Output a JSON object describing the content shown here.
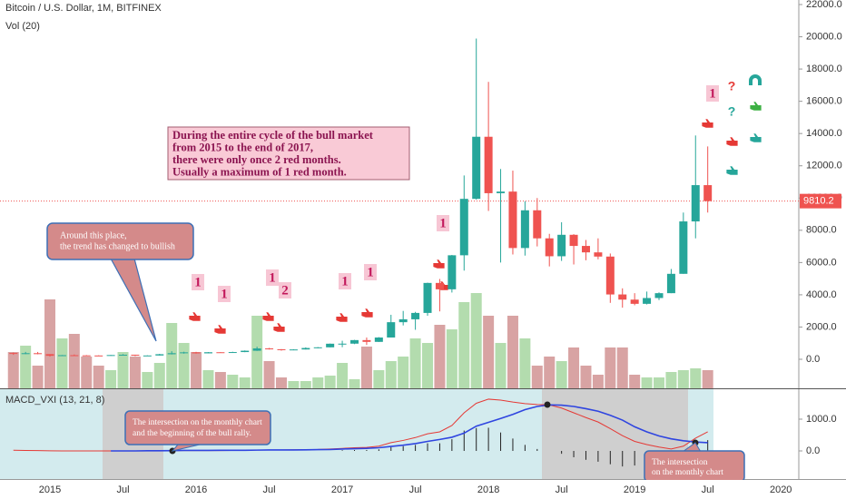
{
  "chart_data": [
    {
      "type": "candlestick",
      "title": "Bitcoin / U.S. Dollar, 1M, BITFINEX",
      "subtitle": "Vol (20)",
      "x": [
        "2014-10",
        "2014-11",
        "2014-12",
        "2015-01",
        "2015-02",
        "2015-03",
        "2015-04",
        "2015-05",
        "2015-06",
        "2015-07",
        "2015-08",
        "2015-09",
        "2015-10",
        "2015-11",
        "2015-12",
        "2016-01",
        "2016-02",
        "2016-03",
        "2016-04",
        "2016-05",
        "2016-06",
        "2016-07",
        "2016-08",
        "2016-09",
        "2016-10",
        "2016-11",
        "2016-12",
        "2017-01",
        "2017-02",
        "2017-03",
        "2017-04",
        "2017-05",
        "2017-06",
        "2017-07",
        "2017-08",
        "2017-09",
        "2017-10",
        "2017-11",
        "2017-12",
        "2018-01",
        "2018-02",
        "2018-03",
        "2018-04",
        "2018-05",
        "2018-06",
        "2018-07",
        "2018-08",
        "2018-09",
        "2018-10",
        "2018-11",
        "2018-12",
        "2019-01",
        "2019-02",
        "2019-03",
        "2019-04",
        "2019-05",
        "2019-06",
        "2019-07"
      ],
      "open": [
        388,
        338,
        378,
        320,
        217,
        254,
        244,
        236,
        230,
        263,
        284,
        230,
        236,
        314,
        377,
        430,
        368,
        437,
        416,
        448,
        531,
        673,
        624,
        575,
        609,
        700,
        742,
        966,
        970,
        1190,
        1080,
        1350,
        2300,
        2480,
        2875,
        4735,
        4340,
        6450,
        9950,
        13800,
        10300,
        10400,
        6900,
        9240,
        7500,
        6390,
        7720,
        7030,
        6630,
        6370,
        4020,
        3700,
        3440,
        3800,
        4100,
        5300,
        8550,
        10800
      ],
      "high": [
        415,
        457,
        455,
        320,
        265,
        300,
        262,
        248,
        268,
        316,
        285,
        245,
        335,
        500,
        468,
        462,
        448,
        440,
        467,
        550,
        780,
        705,
        628,
        623,
        740,
        755,
        975,
        1150,
        1200,
        1350,
        1375,
        2760,
        3000,
        2940,
        4750,
        4980,
        6470,
        11400,
        19890,
        17200,
        11800,
        11700,
        9800,
        10000,
        7780,
        8500,
        7760,
        7400,
        7500,
        6560,
        4400,
        4100,
        4200,
        4150,
        5600,
        9100,
        13880,
        13200
      ],
      "low": [
        275,
        325,
        310,
        166,
        212,
        235,
        214,
        225,
        219,
        254,
        197,
        226,
        236,
        300,
        350,
        350,
        365,
        395,
        413,
        441,
        520,
        605,
        535,
        571,
        606,
        680,
        742,
        750,
        945,
        890,
        1076,
        1350,
        2100,
        1830,
        2700,
        2970,
        4140,
        5500,
        9900,
        9200,
        6000,
        6500,
        6430,
        7000,
        5760,
        6100,
        5880,
        6140,
        6200,
        3500,
        3200,
        3350,
        3400,
        3670,
        4100,
        5300,
        7500,
        9100
      ],
      "close": [
        338,
        378,
        320,
        217,
        254,
        244,
        236,
        230,
        263,
        284,
        230,
        236,
        314,
        377,
        430,
        368,
        437,
        416,
        448,
        531,
        673,
        624,
        575,
        609,
        700,
        742,
        966,
        970,
        1190,
        1080,
        1350,
        2300,
        2480,
        2875,
        4735,
        4340,
        6450,
        9950,
        13800,
        10300,
        10400,
        6900,
        9240,
        7500,
        6390,
        7720,
        7030,
        6630,
        6370,
        4020,
        3700,
        3440,
        3800,
        4100,
        5300,
        8550,
        10800,
        9810.2
      ],
      "volume": [
        40,
        47,
        25,
        98,
        55,
        60,
        35,
        25,
        20,
        40,
        35,
        18,
        28,
        72,
        50,
        40,
        20,
        18,
        15,
        12,
        80,
        30,
        12,
        8,
        8,
        12,
        14,
        28,
        10,
        46,
        20,
        30,
        35,
        55,
        50,
        70,
        65,
        95,
        105,
        80,
        50,
        80,
        55,
        25,
        35,
        30,
        45,
        25,
        15,
        45,
        45,
        15,
        12,
        12,
        18,
        20,
        22,
        20
      ],
      "up_color": "#26a69a",
      "down_color": "#ef5350",
      "volume_up_color": "#b3dcae",
      "volume_down_color": "#d8a3a3",
      "ylim": [
        -1800,
        22281
      ],
      "yticks": [
        {
          "value": 0,
          "label": "0.0"
        },
        {
          "value": 2000,
          "label": "2000.0"
        },
        {
          "value": 4000,
          "label": "4000.0"
        },
        {
          "value": 6000,
          "label": "6000.0"
        },
        {
          "value": 8000,
          "label": "8000.0"
        },
        {
          "value": 10000,
          "label": "10000.0"
        },
        {
          "value": 12000,
          "label": "12000.0"
        },
        {
          "value": 14000,
          "label": "14000.0"
        },
        {
          "value": 16000,
          "label": "16000.0"
        },
        {
          "value": 18000,
          "label": "18000.0"
        },
        {
          "value": 20000,
          "label": "20000.0"
        },
        {
          "value": 22000,
          "label": "22000.0"
        }
      ],
      "xticks": [
        {
          "value": "2015-01",
          "label": "2015"
        },
        {
          "value": "2015-07",
          "label": "Jul"
        },
        {
          "value": "2016-01",
          "label": "2016"
        },
        {
          "value": "2016-07",
          "label": "Jul"
        },
        {
          "value": "2017-01",
          "label": "2017"
        },
        {
          "value": "2017-07",
          "label": "Jul"
        },
        {
          "value": "2018-01",
          "label": "2018"
        },
        {
          "value": "2018-07",
          "label": "Jul"
        },
        {
          "value": "2019-01",
          "label": "2019"
        },
        {
          "value": "2019-07",
          "label": "Jul"
        },
        {
          "value": "2020-01",
          "label": "2020"
        }
      ],
      "annotations": [
        {
          "lines": [
            "During the entire cycle of the bull market",
            "from 2015 to the end of 2017,",
            "there were only once 2 red months.",
            "Usually a maximum of 1 red month."
          ]
        },
        {
          "lines": [
            "Around this place,",
            "the trend has changed to bullish"
          ]
        }
      ],
      "count_marks": [
        1,
        1,
        1,
        2,
        1,
        1,
        1,
        1
      ],
      "question_marks": [
        "?",
        "?"
      ]
    },
    {
      "type": "macd",
      "title": "MACD_VXI (13, 21, 8)",
      "lines": [
        {
          "color": "#e53935",
          "values": [
            20,
            15,
            10,
            5,
            0,
            0,
            0,
            0,
            0,
            0,
            0,
            0,
            5,
            10,
            10,
            10,
            10,
            10,
            15,
            20,
            30,
            30,
            30,
            35,
            40,
            45,
            60,
            80,
            100,
            110,
            150,
            260,
            330,
            420,
            540,
            600,
            800,
            1200,
            1500,
            1630,
            1600,
            1540,
            1490,
            1460,
            1450,
            1350,
            1200,
            1050,
            910,
            700,
            480,
            300,
            200,
            120,
            60,
            150,
            400,
            600
          ]
        },
        {
          "color": "#2f45e0",
          "values": [
            null,
            null,
            null,
            null,
            null,
            null,
            null,
            null,
            0,
            0,
            0,
            5,
            5,
            10,
            15,
            15,
            15,
            20,
            20,
            20,
            25,
            30,
            30,
            30,
            35,
            40,
            45,
            60,
            70,
            80,
            100,
            140,
            180,
            230,
            300,
            360,
            430,
            560,
            780,
            900,
            1020,
            1150,
            1300,
            1400,
            1450,
            1440,
            1400,
            1330,
            1250,
            1120,
            970,
            760,
            600,
            470,
            380,
            320,
            280,
            260
          ]
        }
      ],
      "histogram": [
        null,
        null,
        null,
        null,
        null,
        null,
        null,
        null,
        null,
        null,
        null,
        null,
        null,
        null,
        null,
        null,
        null,
        null,
        null,
        null,
        null,
        null,
        null,
        null,
        null,
        null,
        null,
        20,
        30,
        30,
        50,
        120,
        150,
        190,
        240,
        240,
        370,
        640,
        720,
        730,
        580,
        390,
        190,
        60,
        0,
        -90,
        -200,
        -280,
        -340,
        -420,
        -490,
        -460,
        -400,
        -350,
        -320,
        -170,
        120,
        340
      ],
      "ylim": [
        -886,
        1914
      ],
      "yticks": [
        {
          "value": 1000,
          "label": "1000.0"
        },
        {
          "value": 0,
          "label": "0.0"
        }
      ],
      "annotations": [
        {
          "lines": [
            "The intersection on the monthly chart",
            "and the beginning of the bull rally."
          ]
        },
        {
          "lines": [
            "The intersection",
            "on the monthly chart"
          ]
        }
      ]
    }
  ]
}
